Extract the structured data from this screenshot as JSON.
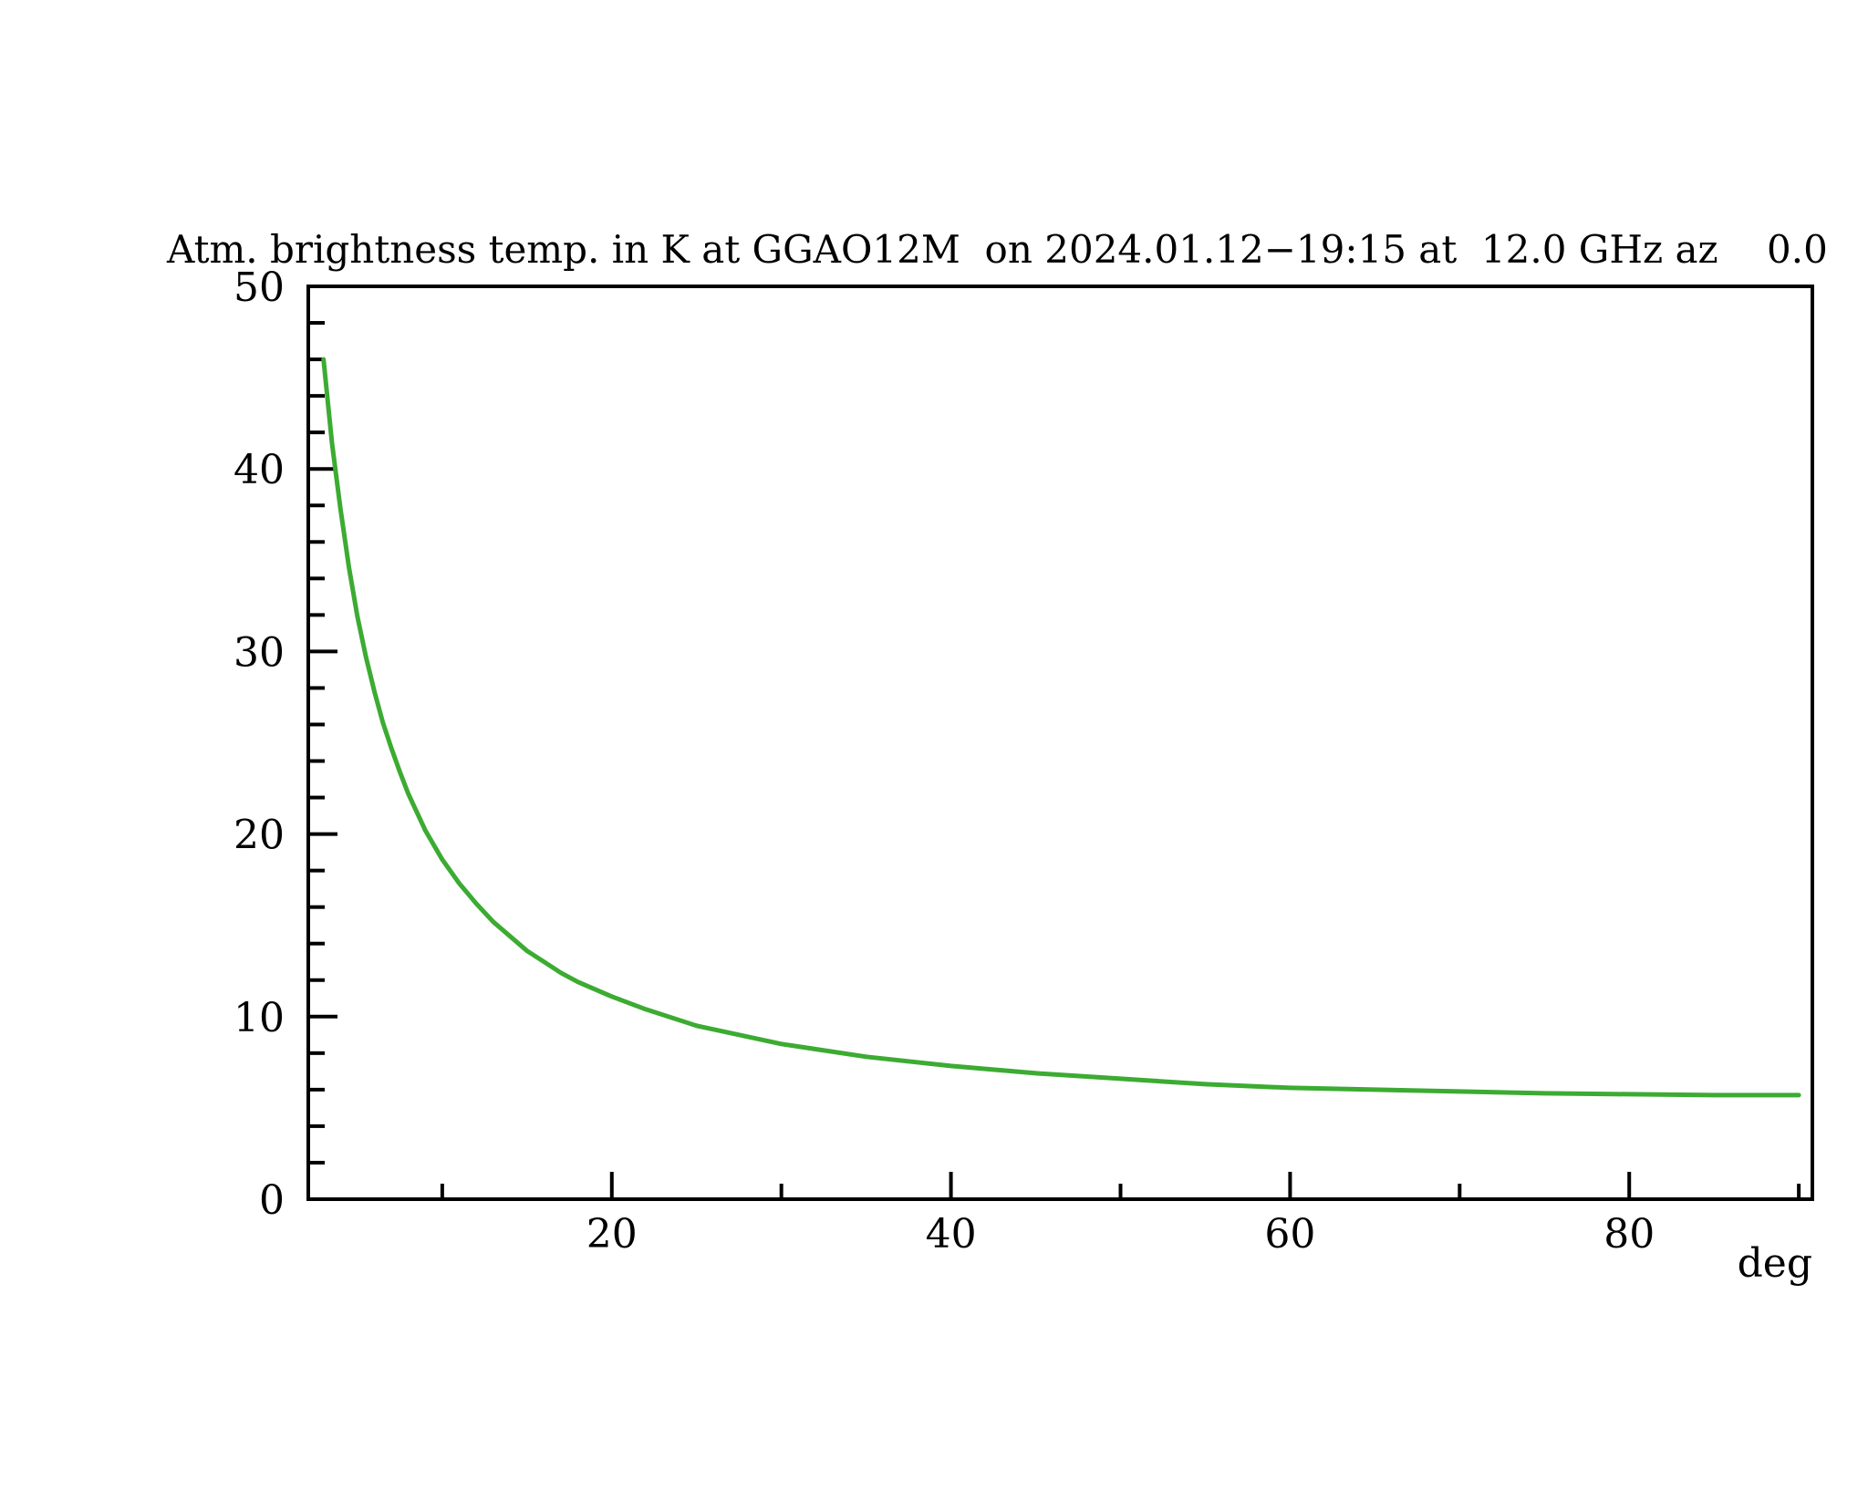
{
  "page": {
    "background": "#ffffff",
    "plot_frame_color": "#000000"
  },
  "chart_data": {
    "type": "line",
    "title": "Atm. brightness temp. in K at GGAO12M  on 2024.01.12−19:15 at  12.0 GHz az    0.0",
    "xlabel": "deg",
    "ylabel": "",
    "station": "GGAO12M",
    "datetime": "2024.01.12-19:15",
    "frequency_ghz": 12.0,
    "azimuth_deg": 0.0,
    "xlim": [
      2.1,
      90.8
    ],
    "ylim": [
      0,
      50
    ],
    "x_ticks_major": [
      20,
      40,
      60,
      80
    ],
    "x_ticks_minor": [
      10,
      30,
      50,
      70,
      90
    ],
    "y_ticks_major": [
      0,
      10,
      20,
      30,
      40,
      50
    ],
    "y_tick_minor_step": 2,
    "grid": false,
    "legend_position": "none",
    "series": [
      {
        "name": "atmospheric-brightness-temperature",
        "color": "#3cab32",
        "x_deg": [
          3,
          3.5,
          4,
          4.5,
          5,
          5.5,
          6,
          6.5,
          7,
          7.5,
          8,
          9,
          10,
          11,
          12,
          13,
          14,
          15,
          16,
          17,
          18,
          19,
          20,
          22,
          25,
          28,
          30,
          35,
          40,
          45,
          50,
          55,
          60,
          65,
          70,
          75,
          80,
          85,
          90
        ],
        "y_K": [
          46.0,
          41.4,
          37.8,
          34.6,
          31.9,
          29.7,
          27.8,
          26.1,
          24.7,
          23.4,
          22.2,
          20.2,
          18.6,
          17.3,
          16.2,
          15.2,
          14.4,
          13.6,
          13.0,
          12.4,
          11.9,
          11.5,
          11.1,
          10.4,
          9.5,
          8.9,
          8.5,
          7.8,
          7.3,
          6.9,
          6.6,
          6.3,
          6.1,
          6.0,
          5.9,
          5.8,
          5.75,
          5.7,
          5.7
        ]
      }
    ]
  }
}
